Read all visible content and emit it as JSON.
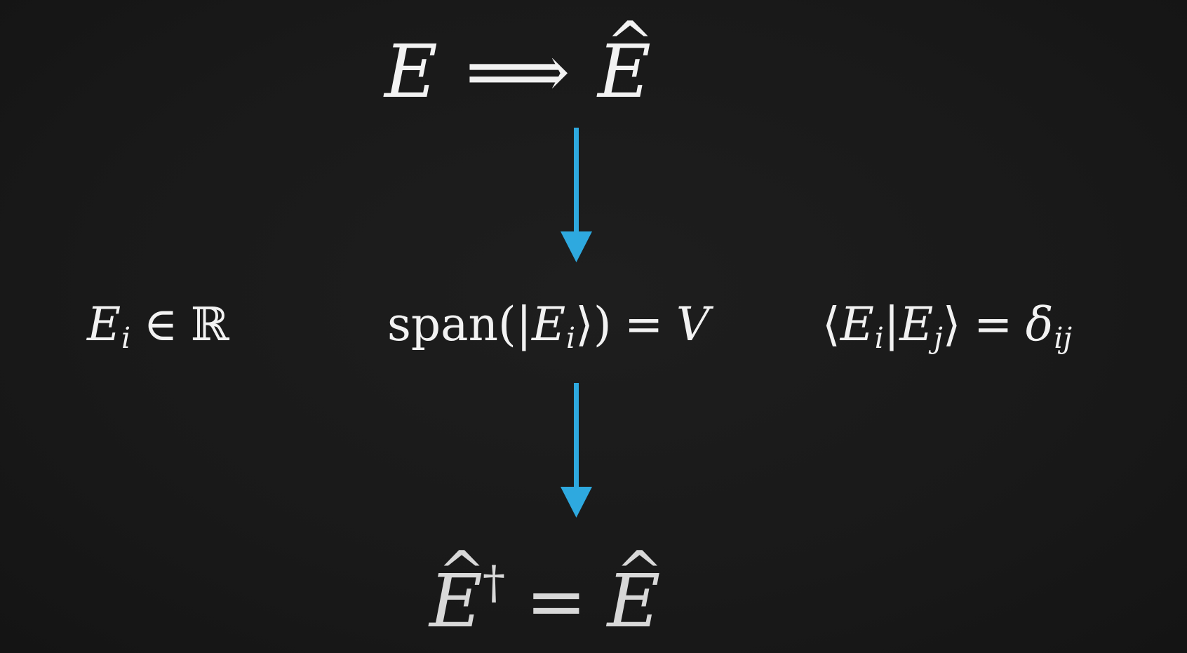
{
  "top": {
    "left_symbol": "E",
    "implies": "⟹",
    "right_symbol": "E",
    "hat": "^"
  },
  "properties": {
    "real": {
      "symbol": "E",
      "index": "i",
      "relation": "∈",
      "set": "ℝ"
    },
    "span": {
      "function": "span",
      "open": "(|",
      "symbol": "E",
      "index": "i",
      "close": "⟩)",
      "equals": "=",
      "space": "V"
    },
    "orthonormal": {
      "open": "⟨",
      "symbol1": "E",
      "index1": "i",
      "bar": "|",
      "symbol2": "E",
      "index2": "j",
      "close": "⟩",
      "equals": "=",
      "delta": "δ",
      "delta_index": "ij"
    }
  },
  "bottom": {
    "left_symbol": "E",
    "dagger": "†",
    "equals": "=",
    "right_symbol": "E",
    "hat": "^"
  },
  "colors": {
    "background": "#1a1a1a",
    "text": "#f2f2f2",
    "arrow": "#2ea9df"
  }
}
